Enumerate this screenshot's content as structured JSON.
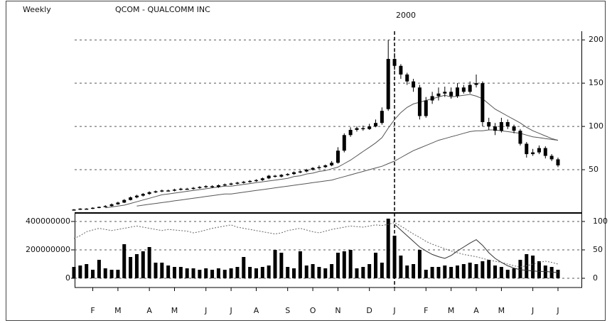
{
  "chart_data": [
    {
      "type": "candlestick",
      "subtitle": "Weekly",
      "title": "QCOM - QUALCOMM INC",
      "year_label": "2000",
      "categories": [
        null,
        null,
        null,
        "F",
        null,
        null,
        null,
        "M",
        null,
        null,
        null,
        null,
        "A",
        null,
        null,
        null,
        "M",
        null,
        null,
        null,
        null,
        "J",
        null,
        null,
        null,
        "J",
        null,
        null,
        null,
        "A",
        null,
        null,
        null,
        null,
        "S",
        null,
        null,
        null,
        "O",
        null,
        null,
        null,
        "N",
        null,
        null,
        null,
        null,
        "D",
        null,
        null,
        null,
        "J",
        null,
        null,
        null,
        null,
        "F",
        null,
        null,
        null,
        "M",
        null,
        null,
        null,
        "A",
        null,
        null,
        null,
        "M",
        null,
        null,
        null,
        null,
        "J",
        null,
        null,
        null,
        "J"
      ],
      "open": [
        3.5,
        4,
        5,
        5,
        6,
        7,
        8,
        10,
        12,
        15,
        18,
        20,
        22,
        24,
        25,
        26,
        26,
        27,
        28,
        28,
        29,
        30,
        31,
        30,
        32,
        33,
        34,
        35,
        36,
        37,
        38,
        40,
        43,
        42,
        44,
        45,
        47,
        48,
        50,
        52,
        53,
        55,
        58,
        72,
        90,
        96,
        98,
        97,
        100,
        104,
        120,
        178,
        170,
        160,
        152,
        145,
        112,
        130,
        135,
        138,
        140,
        135,
        145,
        140,
        148,
        150,
        105,
        100,
        95,
        105,
        100,
        95,
        80,
        68,
        70,
        75,
        66,
        62
      ],
      "high": [
        4.5,
        5.5,
        5.5,
        6.5,
        7.5,
        9,
        11,
        13,
        16,
        19,
        21,
        23,
        25,
        26,
        27,
        27,
        28,
        29,
        29,
        30,
        31,
        32,
        32,
        33,
        34,
        35,
        36,
        37,
        38,
        39,
        41,
        44,
        44,
        45,
        46,
        48,
        49,
        51,
        53,
        55,
        56,
        60,
        76,
        92,
        99,
        100,
        101,
        103,
        108,
        122,
        200,
        185,
        172,
        162,
        155,
        148,
        134,
        140,
        145,
        146,
        145,
        150,
        148,
        152,
        160,
        152,
        110,
        104,
        110,
        108,
        102,
        97,
        82,
        74,
        78,
        77,
        68,
        64
      ],
      "low": [
        3,
        3.5,
        4.5,
        4.5,
        5.5,
        6.5,
        7.5,
        9.5,
        11.5,
        14.5,
        17,
        19,
        21,
        23,
        24,
        25,
        25,
        26,
        27,
        27,
        28,
        29,
        29,
        29,
        31,
        32,
        33,
        34,
        35,
        36,
        37,
        39,
        41,
        41,
        43,
        44,
        46,
        47,
        49,
        51,
        52,
        54,
        57,
        70,
        88,
        94,
        95,
        96,
        99,
        102,
        118,
        165,
        155,
        148,
        140,
        108,
        110,
        126,
        130,
        134,
        132,
        133,
        138,
        138,
        145,
        100,
        96,
        90,
        93,
        97,
        92,
        78,
        64,
        66,
        68,
        63,
        60,
        53
      ],
      "close": [
        4,
        5,
        5,
        6,
        7,
        8,
        10,
        12,
        15,
        18,
        20,
        22,
        24,
        25,
        26,
        26,
        27,
        28,
        28,
        29,
        30,
        31,
        30,
        32,
        33,
        34,
        35,
        36,
        37,
        38,
        40,
        43,
        42,
        44,
        45,
        47,
        48,
        50,
        52,
        53,
        55,
        58,
        72,
        90,
        96,
        98,
        97,
        100,
        104,
        118,
        178,
        170,
        160,
        152,
        145,
        112,
        130,
        135,
        138,
        140,
        135,
        145,
        140,
        148,
        150,
        105,
        100,
        95,
        105,
        100,
        95,
        80,
        68,
        70,
        75,
        66,
        62,
        55
      ],
      "color": "#000000",
      "overlays": [
        {
          "color": "#555555",
          "values": [
            null,
            null,
            null,
            null,
            null,
            6,
            7,
            8,
            9,
            11,
            13,
            15,
            17,
            19,
            21,
            22,
            23,
            24,
            25,
            26,
            27,
            28,
            29,
            30,
            31,
            31,
            32,
            33,
            34,
            35,
            36,
            37,
            38,
            39,
            40,
            42,
            43,
            45,
            46,
            48,
            49,
            51,
            53,
            57,
            61,
            66,
            71,
            76,
            81,
            87,
            98,
            108,
            116,
            122,
            126,
            128,
            130,
            132,
            134,
            136,
            134,
            135,
            136,
            137,
            135,
            132,
            126,
            120,
            116,
            112,
            108,
            104,
            99,
            95,
            92,
            89,
            86,
            84
          ]
        },
        {
          "color": "#555555",
          "values": [
            null,
            null,
            null,
            null,
            null,
            null,
            null,
            null,
            null,
            null,
            8,
            9,
            10,
            11,
            12,
            13,
            14,
            15,
            16,
            17,
            18,
            19,
            20,
            21,
            22,
            22,
            23,
            24,
            25,
            26,
            27,
            28,
            29,
            30,
            31,
            32,
            33,
            34,
            35,
            36,
            37,
            38,
            40,
            42,
            44,
            46,
            48,
            50,
            52,
            54,
            57,
            60,
            64,
            68,
            72,
            75,
            78,
            81,
            84,
            86,
            88,
            90,
            92,
            94,
            95,
            95,
            96,
            96,
            95,
            94,
            93,
            92,
            90,
            88,
            87,
            86,
            85,
            84
          ]
        }
      ],
      "ylim": [
        0,
        210
      ],
      "yticks": [
        200,
        150,
        100,
        50
      ],
      "grid": true
    },
    {
      "type": "bar",
      "values": [
        80000000,
        90000000,
        100000000,
        60000000,
        130000000,
        70000000,
        60000000,
        60000000,
        240000000,
        150000000,
        170000000,
        190000000,
        220000000,
        110000000,
        110000000,
        90000000,
        80000000,
        80000000,
        70000000,
        70000000,
        60000000,
        70000000,
        60000000,
        70000000,
        60000000,
        70000000,
        80000000,
        150000000,
        80000000,
        70000000,
        80000000,
        90000000,
        200000000,
        180000000,
        80000000,
        70000000,
        190000000,
        90000000,
        100000000,
        80000000,
        70000000,
        100000000,
        180000000,
        190000000,
        200000000,
        70000000,
        80000000,
        100000000,
        180000000,
        110000000,
        420000000,
        300000000,
        160000000,
        90000000,
        100000000,
        200000000,
        60000000,
        80000000,
        80000000,
        90000000,
        80000000,
        90000000,
        100000000,
        110000000,
        100000000,
        120000000,
        130000000,
        90000000,
        80000000,
        60000000,
        70000000,
        130000000,
        170000000,
        160000000,
        120000000,
        90000000,
        80000000,
        60000000
      ],
      "color": "#000000",
      "ylim": [
        0,
        460000000
      ],
      "yticks": [
        400000000,
        200000000,
        0
      ],
      "y2lim": [
        0,
        115
      ],
      "y2ticks": [
        100,
        50,
        0
      ],
      "grid": true,
      "series": [
        {
          "axis": "y2",
          "color": "#666666",
          "values": [
            70,
            75,
            82,
            85,
            88,
            86,
            84,
            86,
            88,
            90,
            92,
            90,
            88,
            86,
            84,
            86,
            85,
            84,
            83,
            80,
            82,
            85,
            88,
            90,
            92,
            94,
            90,
            88,
            86,
            84,
            82,
            80,
            78,
            80,
            84,
            86,
            88,
            85,
            82,
            80,
            83,
            86,
            88,
            90,
            92,
            91,
            90,
            92,
            94,
            93,
            95,
            98,
            92,
            85,
            78,
            72,
            65,
            60,
            56,
            52,
            48,
            45,
            42,
            40,
            38,
            35,
            32,
            30,
            28,
            25,
            22,
            20,
            22,
            25,
            28,
            30,
            28,
            25
          ]
        },
        {
          "axis": "y2",
          "color": "#333333",
          "values": [
            null,
            null,
            null,
            null,
            null,
            null,
            null,
            null,
            null,
            null,
            null,
            null,
            null,
            null,
            null,
            null,
            null,
            null,
            null,
            null,
            null,
            null,
            null,
            null,
            null,
            null,
            null,
            null,
            null,
            null,
            null,
            null,
            null,
            null,
            null,
            null,
            null,
            null,
            null,
            null,
            null,
            null,
            null,
            null,
            null,
            null,
            null,
            null,
            null,
            null,
            null,
            95,
            85,
            75,
            65,
            55,
            48,
            42,
            38,
            35,
            40,
            48,
            55,
            62,
            68,
            58,
            45,
            35,
            28,
            22,
            18,
            15,
            14,
            13,
            12,
            12,
            11,
            10
          ]
        }
      ]
    }
  ]
}
